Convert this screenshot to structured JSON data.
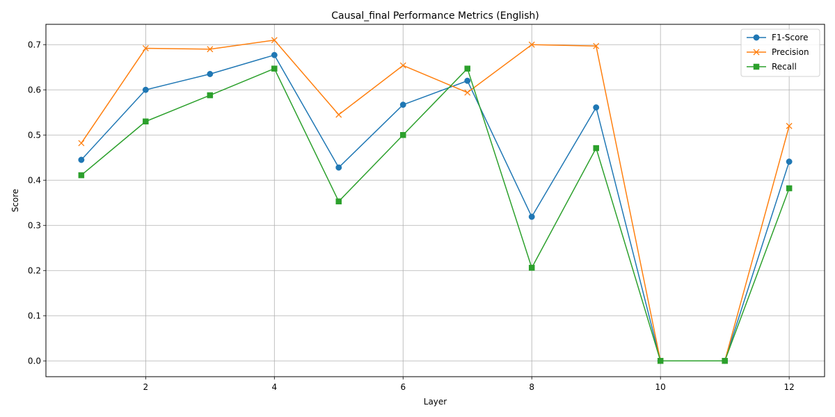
{
  "chart_data": {
    "type": "line",
    "title": "Causal_final Performance Metrics (English)",
    "xlabel": "Layer",
    "ylabel": "Score",
    "x": [
      1,
      2,
      3,
      4,
      5,
      6,
      7,
      8,
      9,
      10,
      11,
      12
    ],
    "xlim": [
      0.45,
      12.55
    ],
    "ylim": [
      -0.035,
      0.745
    ],
    "xticks": [
      2,
      4,
      6,
      8,
      10,
      12
    ],
    "yticks": [
      0.0,
      0.1,
      0.2,
      0.3,
      0.4,
      0.5,
      0.6,
      0.7
    ],
    "xtick_labels": [
      "2",
      "4",
      "6",
      "8",
      "10",
      "12"
    ],
    "ytick_labels": [
      "0.0",
      "0.1",
      "0.2",
      "0.3",
      "0.4",
      "0.5",
      "0.6",
      "0.7"
    ],
    "grid": true,
    "legend_position": "top-right",
    "series": [
      {
        "name": "F1-Score",
        "color": "#1f77b4",
        "marker": "circle",
        "values": [
          0.445,
          0.6,
          0.635,
          0.677,
          0.428,
          0.567,
          0.62,
          0.319,
          0.561,
          0.0,
          0.0,
          0.441
        ]
      },
      {
        "name": "Precision",
        "color": "#ff7f0e",
        "marker": "x",
        "values": [
          0.482,
          0.692,
          0.69,
          0.71,
          0.545,
          0.654,
          0.594,
          0.7,
          0.697,
          0.0,
          0.0,
          0.52
        ]
      },
      {
        "name": "Recall",
        "color": "#2ca02c",
        "marker": "square",
        "values": [
          0.411,
          0.53,
          0.588,
          0.647,
          0.353,
          0.5,
          0.647,
          0.206,
          0.471,
          0.0,
          0.0,
          0.382
        ]
      }
    ]
  }
}
